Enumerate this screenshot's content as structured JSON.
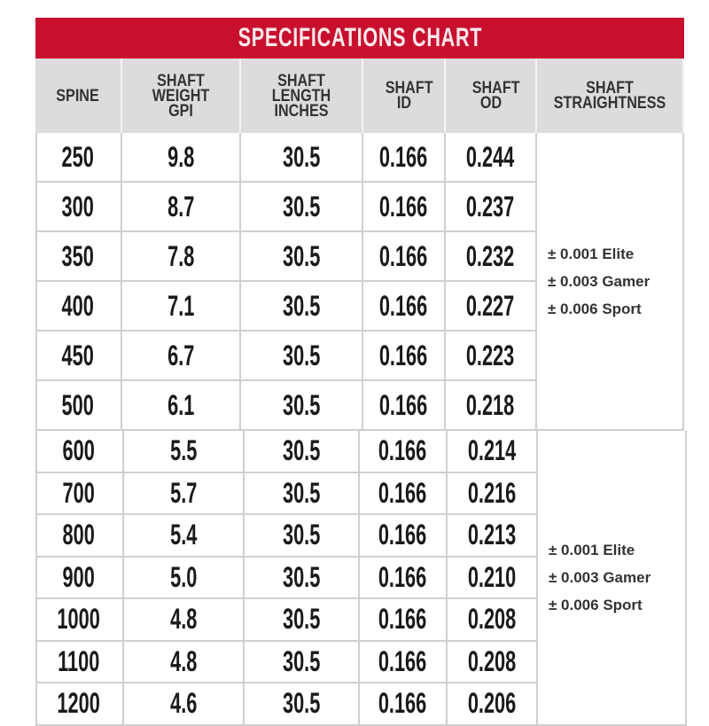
{
  "title": "SPECIFICATIONS CHART",
  "colors": {
    "title_bg": "#c8102e",
    "header_bg": "#dcdcdc"
  },
  "columns": [
    "SPINE",
    "SHAFT WEIGHT GPI",
    "SHAFT LENGTH INCHES",
    "SHAFT ID",
    "SHAFT OD",
    "SHAFT STRAIGHTNESS"
  ],
  "groups": [
    {
      "rows": [
        [
          "250",
          "9.8",
          "30.5",
          "0.166",
          "0.244"
        ],
        [
          "300",
          "8.7",
          "30.5",
          "0.166",
          "0.237"
        ],
        [
          "350",
          "7.8",
          "30.5",
          "0.166",
          "0.232"
        ],
        [
          "400",
          "7.1",
          "30.5",
          "0.166",
          "0.227"
        ],
        [
          "450",
          "6.7",
          "30.5",
          "0.166",
          "0.223"
        ],
        [
          "500",
          "6.1",
          "30.5",
          "0.166",
          "0.218"
        ]
      ],
      "straightness": [
        "± 0.001 Elite",
        "± 0.003 Gamer",
        "± 0.006 Sport"
      ]
    },
    {
      "rows": [
        [
          "600",
          "5.5",
          "30.5",
          "0.166",
          "0.214"
        ],
        [
          "700",
          "5.7",
          "30.5",
          "0.166",
          "0.216"
        ],
        [
          "800",
          "5.4",
          "30.5",
          "0.166",
          "0.213"
        ],
        [
          "900",
          "5.0",
          "30.5",
          "0.166",
          "0.210"
        ],
        [
          "1000",
          "4.8",
          "30.5",
          "0.166",
          "0.208"
        ],
        [
          "1100",
          "4.8",
          "30.5",
          "0.166",
          "0.208"
        ],
        [
          "1200",
          "4.6",
          "30.5",
          "0.166",
          "0.206"
        ]
      ],
      "straightness": [
        "± 0.001 Elite",
        "± 0.003 Gamer",
        "± 0.006 Sport"
      ]
    }
  ]
}
